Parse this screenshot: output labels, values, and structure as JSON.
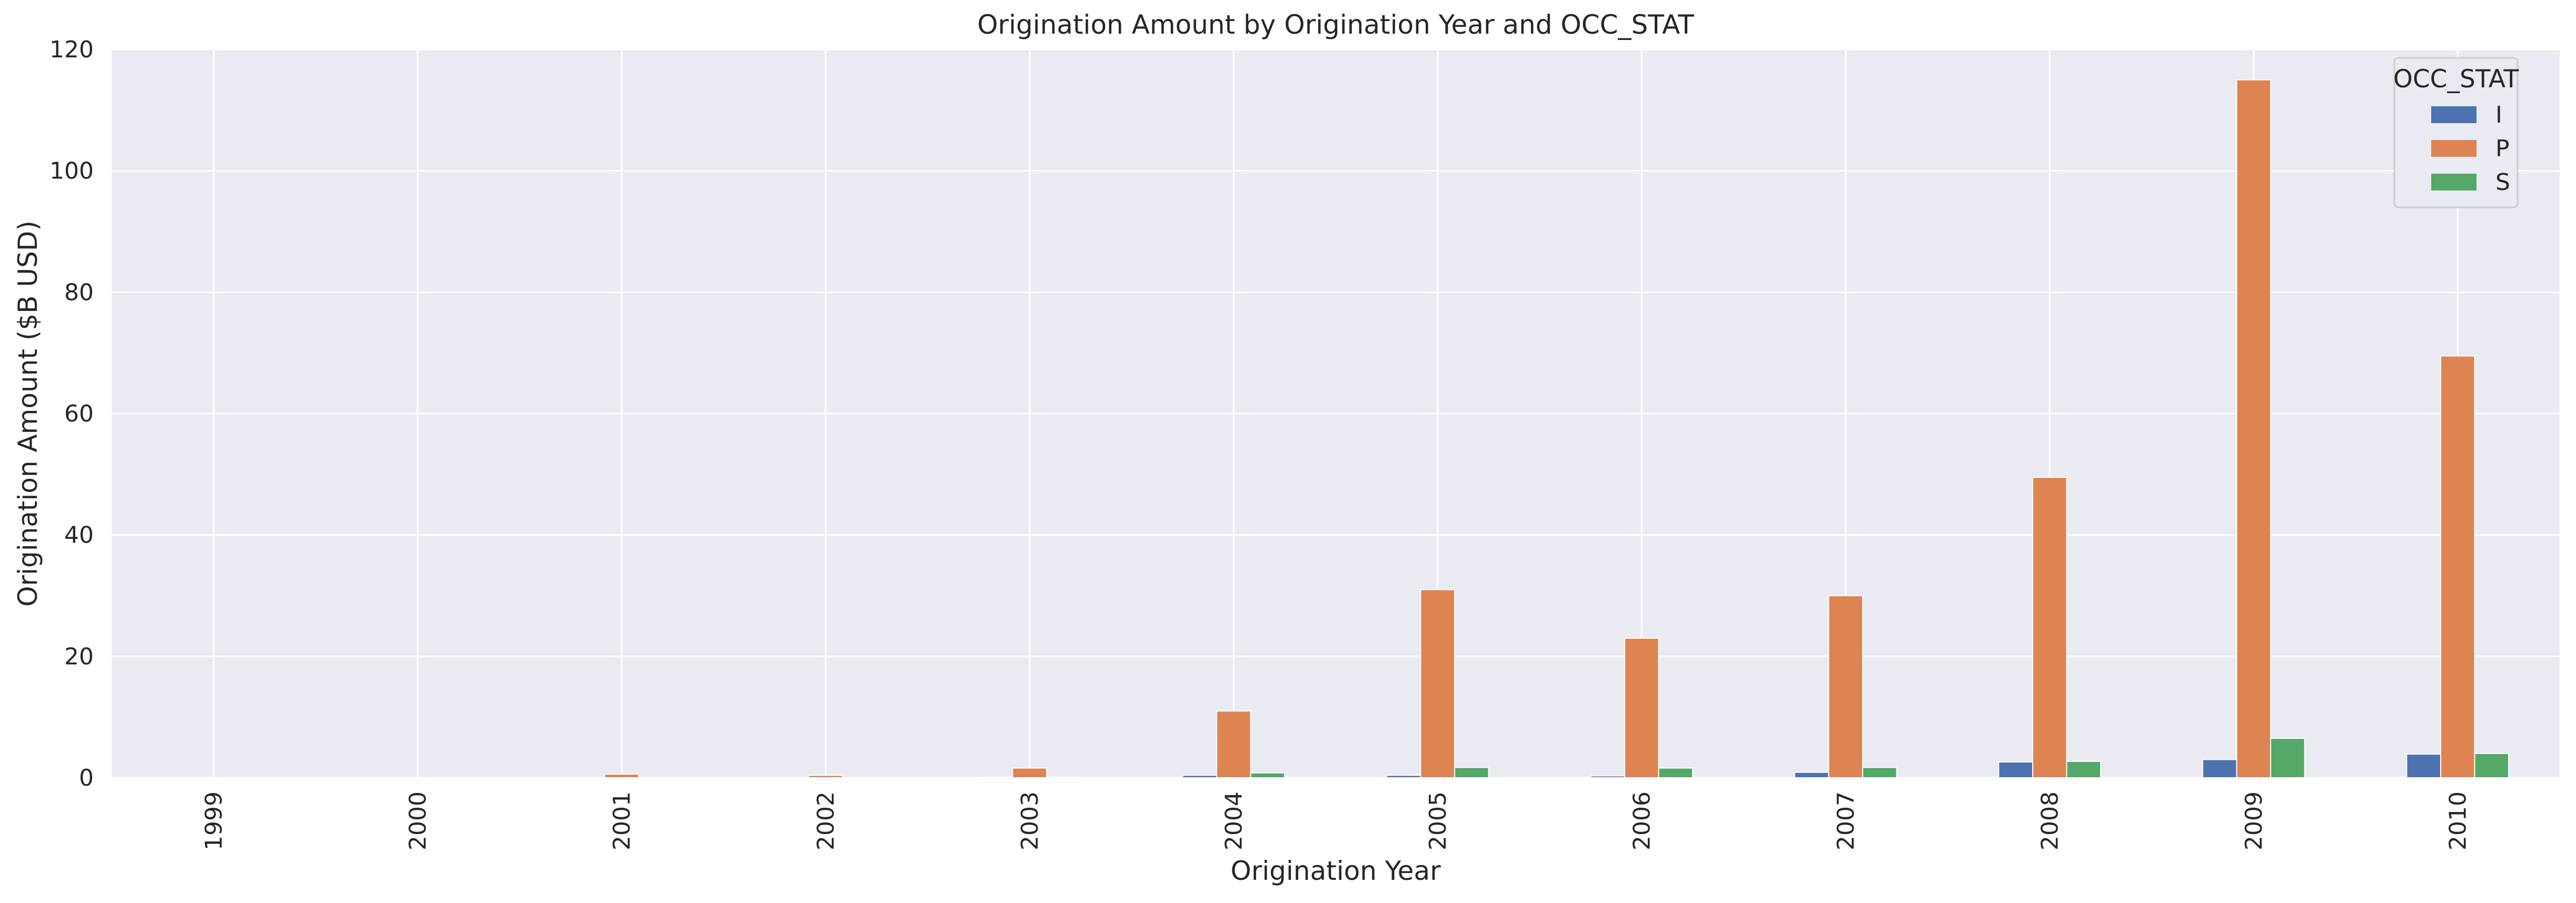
{
  "chart_data": {
    "type": "bar",
    "title": "Origination Amount by Origination Year and OCC_STAT",
    "xlabel": "Origination Year",
    "ylabel": "Origination Amount ($B USD)",
    "categories": [
      "1999",
      "2000",
      "2001",
      "2002",
      "2003",
      "2004",
      "2005",
      "2006",
      "2007",
      "2008",
      "2009",
      "2010"
    ],
    "ylim": [
      0,
      120
    ],
    "yticks": [
      0,
      20,
      40,
      60,
      80,
      100,
      120
    ],
    "grid": true,
    "legend": {
      "title": "OCC_STAT",
      "placement": "top-right"
    },
    "series": [
      {
        "name": "I",
        "color": "#4c72b0",
        "values": [
          0,
          0,
          0.05,
          0.05,
          0.1,
          0.4,
          0.4,
          0.3,
          0.9,
          2.6,
          3.0,
          3.9
        ]
      },
      {
        "name": "P",
        "color": "#dd8452",
        "values": [
          0.02,
          0.03,
          0.6,
          0.4,
          1.6,
          11.0,
          31.0,
          23.0,
          30.0,
          49.5,
          115.0,
          69.5
        ]
      },
      {
        "name": "S",
        "color": "#55a868",
        "values": [
          0,
          0,
          0.05,
          0.05,
          0.1,
          0.8,
          1.7,
          1.6,
          1.7,
          2.7,
          6.5,
          4.0
        ]
      }
    ]
  }
}
